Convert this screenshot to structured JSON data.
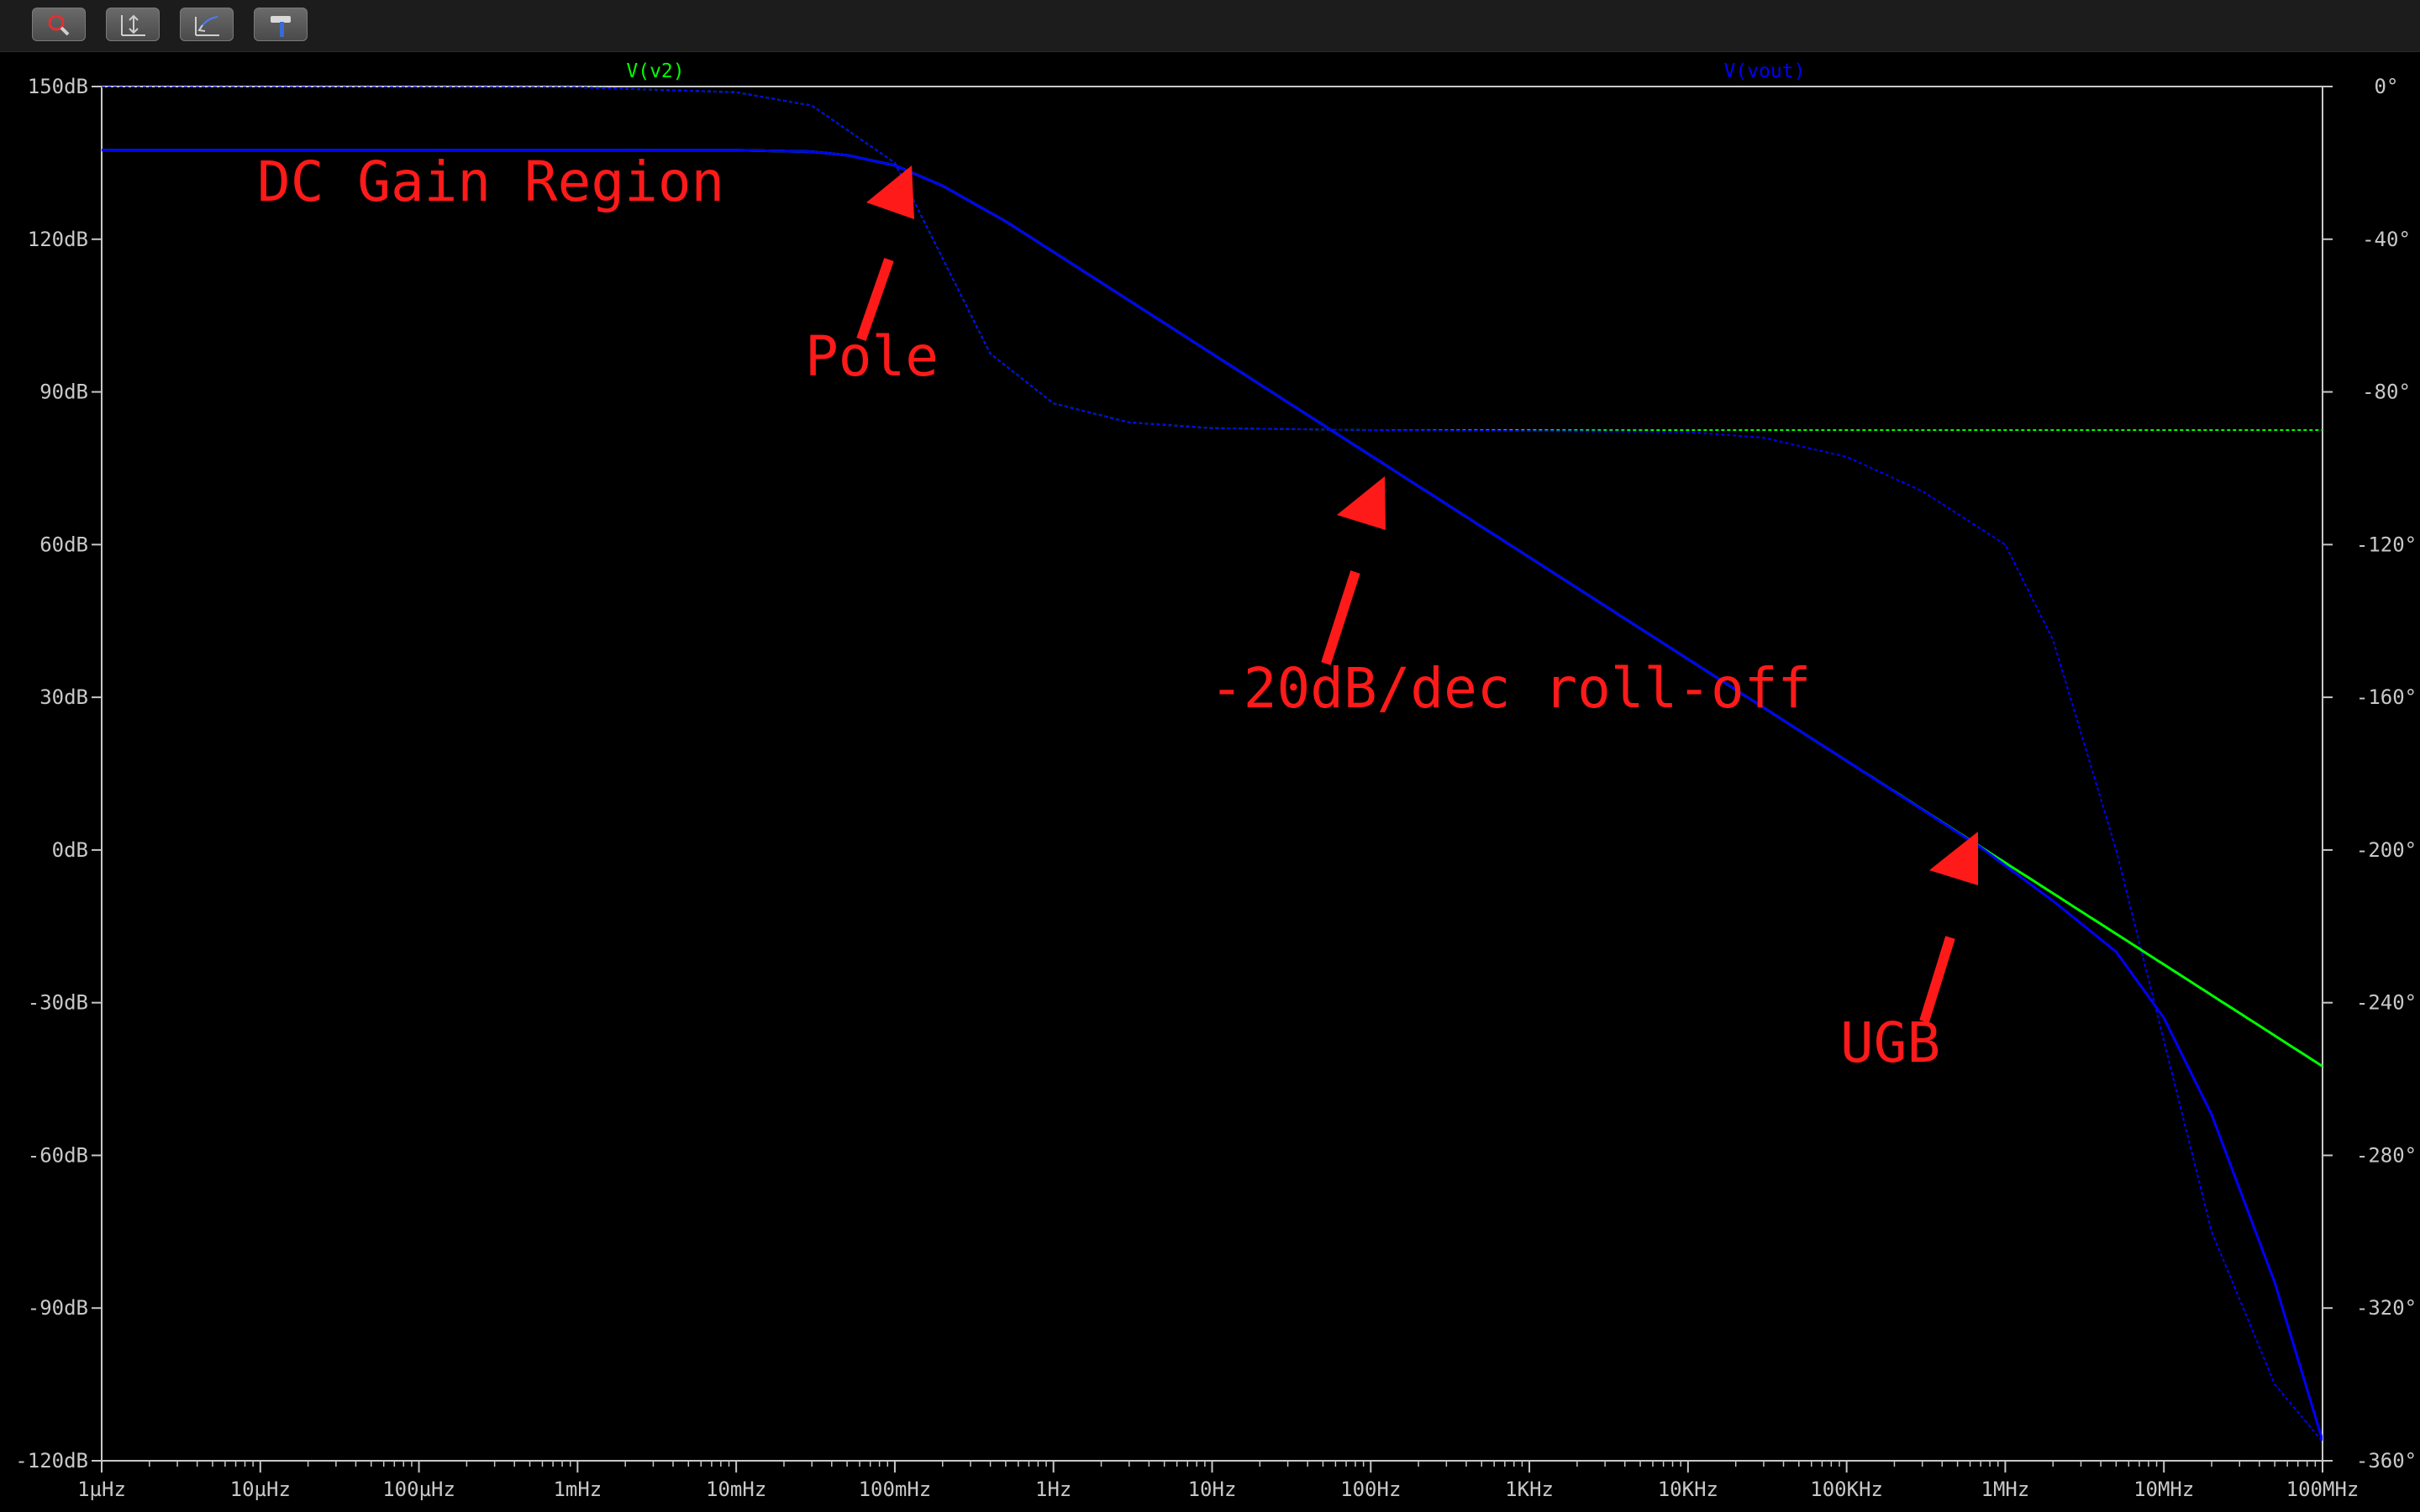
{
  "toolbar": {
    "buttons": [
      {
        "name": "zoom-tool-icon"
      },
      {
        "name": "autorange-icon"
      },
      {
        "name": "pan-icon"
      },
      {
        "name": "hammer-icon"
      }
    ]
  },
  "chart_data": {
    "type": "line",
    "x_scale": "log",
    "xlim": [
      1e-06,
      100000000.0
    ],
    "x_tick_labels": [
      "1µHz",
      "10µHz",
      "100µHz",
      "1mHz",
      "10mHz",
      "100mHz",
      "1Hz",
      "10Hz",
      "100Hz",
      "1KHz",
      "10KHz",
      "100KHz",
      "1MHz",
      "10MHz",
      "100MHz"
    ],
    "y_left": {
      "lim": [
        -120,
        150
      ],
      "ticks": [
        150,
        120,
        90,
        60,
        30,
        0,
        -30,
        -60,
        -90,
        -120
      ],
      "unit": "dB"
    },
    "y_left_tick_labels": [
      "150dB",
      "120dB",
      "90dB",
      "60dB",
      "30dB",
      "0dB",
      "-30dB",
      "-60dB",
      "-90dB",
      "-120dB"
    ],
    "y_right": {
      "lim": [
        -360,
        0
      ],
      "ticks": [
        0,
        -40,
        -80,
        -120,
        -160,
        -200,
        -240,
        -280,
        -320,
        -360
      ],
      "unit": "°"
    },
    "y_right_tick_labels": [
      "0°",
      "-40°",
      "-80°",
      "-120°",
      "-160°",
      "-200°",
      "-240°",
      "-280°",
      "-320°",
      "-360°"
    ],
    "grid": false,
    "series": [
      {
        "name": "V(v2)",
        "color": "#00ff00",
        "magnitude_db": [
          [
            1e-06,
            137.5
          ],
          [
            0.001,
            137.5
          ],
          [
            0.01,
            137.5
          ],
          [
            0.03,
            137.2
          ],
          [
            0.05,
            136.5
          ],
          [
            0.1,
            134.5
          ],
          [
            0.2,
            130.5
          ],
          [
            0.5,
            123.5
          ],
          [
            1,
            117.5
          ],
          [
            10,
            97.5
          ],
          [
            100,
            77.5
          ],
          [
            1000,
            57.5
          ],
          [
            10000,
            37.5
          ],
          [
            100000,
            17.5
          ],
          [
            1000000,
            -2.5
          ],
          [
            10000000,
            -22.5
          ],
          [
            100000000,
            -42.5
          ]
        ],
        "phase_deg": [
          [
            1e-06,
            0
          ],
          [
            0.001,
            -0.2
          ],
          [
            0.01,
            -1.5
          ],
          [
            0.03,
            -5
          ],
          [
            0.1,
            -20
          ],
          [
            0.2,
            -45
          ],
          [
            0.4,
            -70
          ],
          [
            1,
            -83
          ],
          [
            3,
            -88
          ],
          [
            10,
            -89.5
          ],
          [
            100,
            -90
          ],
          [
            100000000,
            -90
          ]
        ]
      },
      {
        "name": "V(vout)",
        "color": "#0000ff",
        "magnitude_db": [
          [
            1e-06,
            137.5
          ],
          [
            0.001,
            137.5
          ],
          [
            0.01,
            137.5
          ],
          [
            0.03,
            137.2
          ],
          [
            0.05,
            136.5
          ],
          [
            0.1,
            134.5
          ],
          [
            0.2,
            130.5
          ],
          [
            0.5,
            123.5
          ],
          [
            1,
            117.5
          ],
          [
            10,
            97.5
          ],
          [
            100,
            77.5
          ],
          [
            1000,
            57.5
          ],
          [
            10000,
            37.5
          ],
          [
            100000,
            17.5
          ],
          [
            700000,
            0.5
          ],
          [
            2000000,
            -10
          ],
          [
            5000000,
            -20
          ],
          [
            10000000,
            -33
          ],
          [
            20000000,
            -52
          ],
          [
            50000000,
            -85
          ],
          [
            100000000,
            -116
          ]
        ],
        "phase_deg": [
          [
            1e-06,
            0
          ],
          [
            0.001,
            -0.2
          ],
          [
            0.01,
            -1.5
          ],
          [
            0.03,
            -5
          ],
          [
            0.1,
            -20
          ],
          [
            0.2,
            -45
          ],
          [
            0.4,
            -70
          ],
          [
            1,
            -83
          ],
          [
            3,
            -88
          ],
          [
            10,
            -89.5
          ],
          [
            100,
            -90
          ],
          [
            10000,
            -90.5
          ],
          [
            30000,
            -92
          ],
          [
            100000,
            -97
          ],
          [
            300000,
            -106
          ],
          [
            1000000,
            -120
          ],
          [
            2000000,
            -145
          ],
          [
            5000000,
            -200
          ],
          [
            10000000,
            -250
          ],
          [
            20000000,
            -300
          ],
          [
            50000000,
            -340
          ],
          [
            100000000,
            -355
          ]
        ]
      }
    ],
    "annotations": [
      {
        "text": "DC Gain Region"
      },
      {
        "text": "Pole"
      },
      {
        "text": "-20dB/dec roll-off"
      },
      {
        "text": "UGB"
      }
    ]
  }
}
